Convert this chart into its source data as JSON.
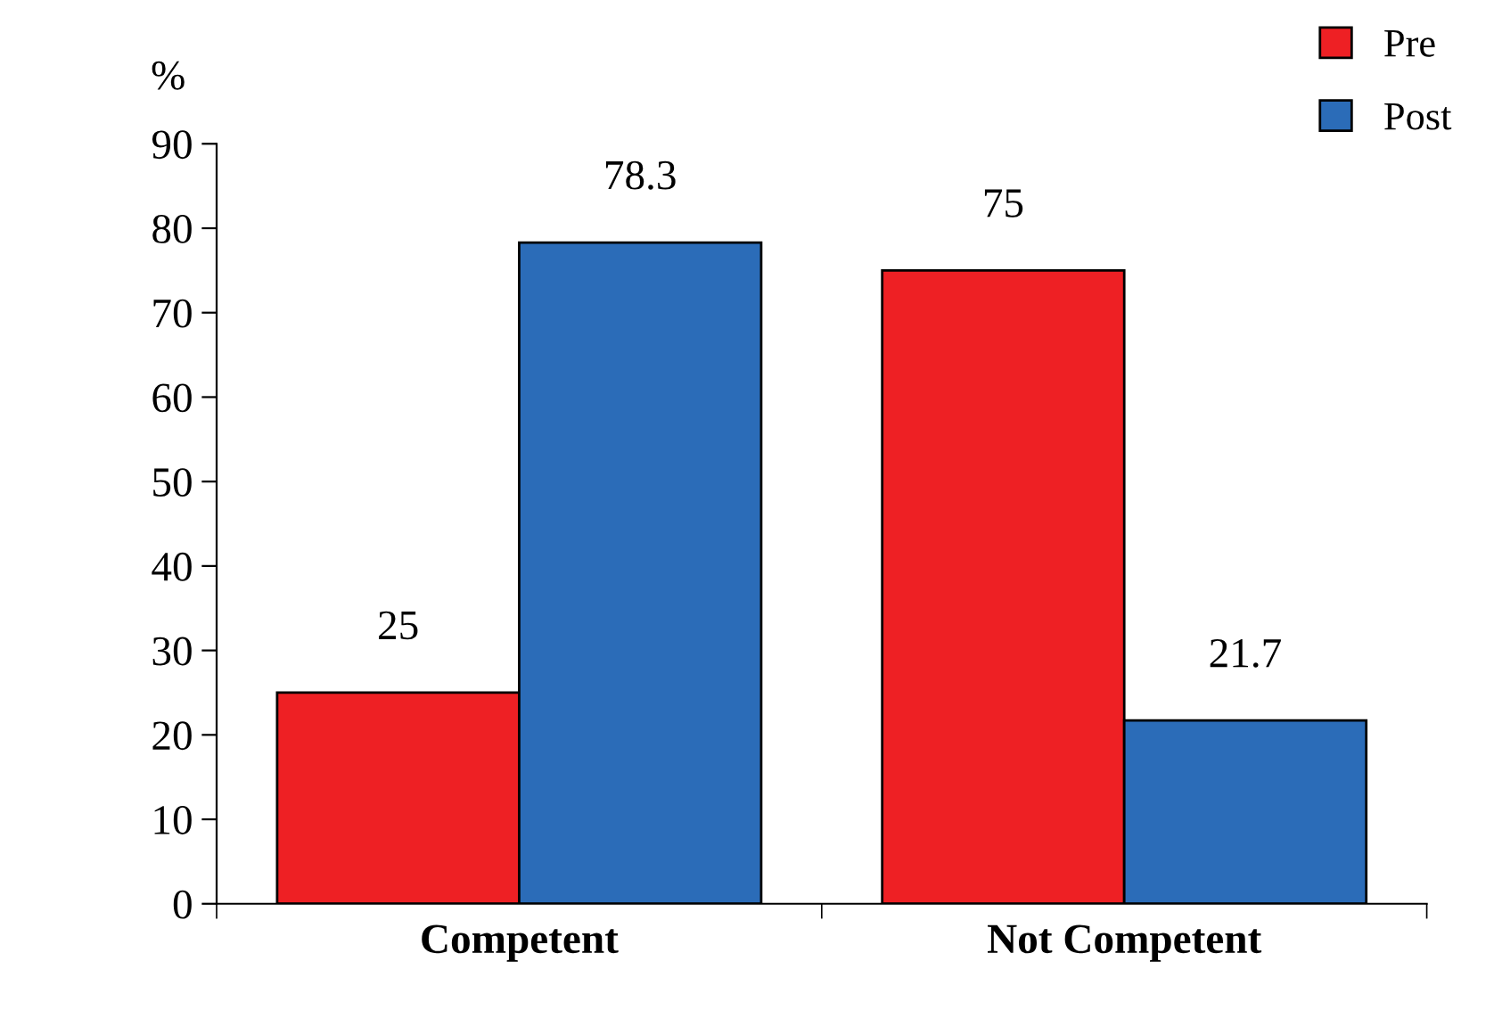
{
  "chart_data": {
    "type": "bar",
    "ylabel": "%",
    "categories": [
      "Competent",
      "Not Competent"
    ],
    "series": [
      {
        "name": "Pre",
        "color": "#ee2024",
        "values": [
          25,
          75
        ]
      },
      {
        "name": "Post",
        "color": "#2b6cb8",
        "values": [
          78.3,
          21.7
        ]
      }
    ],
    "ylim": [
      0,
      90
    ],
    "yticks": [
      0,
      10,
      20,
      30,
      40,
      50,
      60,
      70,
      80,
      90
    ],
    "data_labels": true,
    "legend": "top right",
    "grid": false
  }
}
